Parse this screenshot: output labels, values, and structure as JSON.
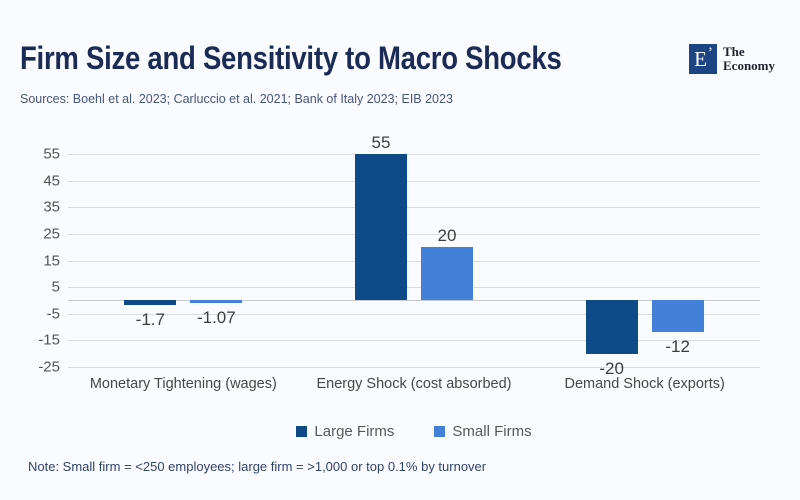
{
  "header": {
    "title": "Firm Size and Sensitivity to Macro Shocks",
    "sources": "Sources: Boehl et al. 2023; Carluccio et al. 2021; Bank of Italy 2023; EIB 2023",
    "logo": {
      "mark": "E",
      "accent": "’",
      "name_line1": "The",
      "name_line2": "Economy",
      "mark_color": "#1d4483"
    }
  },
  "chart_data": {
    "type": "bar",
    "categories": [
      "Monetary Tightening (wages)",
      "Energy Shock (cost absorbed)",
      "Demand Shock (exports)"
    ],
    "series": [
      {
        "name": "Large Firms",
        "color": "#0e4a87",
        "values": [
          -1.7,
          55,
          -20
        ]
      },
      {
        "name": "Small Firms",
        "color": "#4381d8",
        "values": [
          -1.07,
          20,
          -12
        ]
      }
    ],
    "ylim": [
      -25,
      55
    ],
    "yticks": [
      55,
      45,
      35,
      25,
      15,
      5,
      -5,
      -15,
      -25
    ],
    "grid": true,
    "legend_position": "bottom"
  },
  "note": "Note: Small firm = <250 employees; large firm = >1,000 or top 0.1% by turnover",
  "colors": {
    "background": "#fafbfe",
    "title": "#1b2b55",
    "gridline": "#dbdce0",
    "large_firms": "#0e4a87",
    "small_firms": "#4381d8"
  }
}
